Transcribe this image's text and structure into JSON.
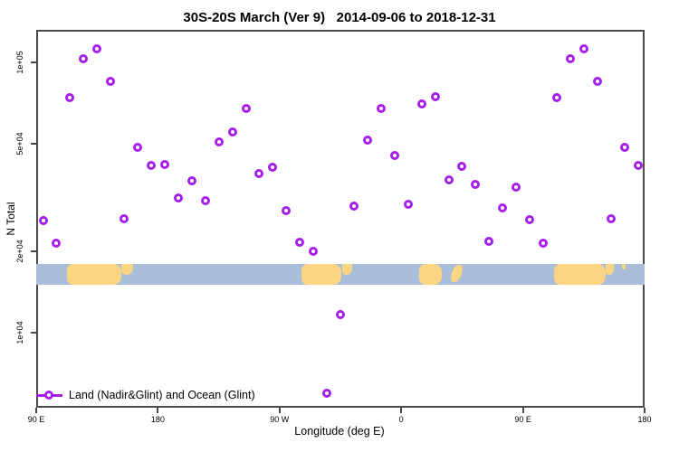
{
  "title": "30S-20S March (Ver 9)   2014-09-06 to 2018-12-31",
  "legend": {
    "label": "Land (Nadir&Glint) and Ocean (Glint)"
  },
  "colors": {
    "marker": "#A420E8",
    "ocean": "#A9BED9",
    "land": "#FBD581",
    "axis": "#4A4A4A",
    "text": "#000000"
  },
  "chart_data": {
    "type": "scatter",
    "title": "30S-20S March (Ver 9)   2014-09-06 to 2018-12-31",
    "xlabel": "Longitude (deg E)",
    "ylabel": "N Total",
    "x_range_deg_e": [
      90,
      540
    ],
    "y_scale": "log10",
    "y_range": [
      5300,
      132000
    ],
    "grid": false,
    "legend_position": "bottom-left-inside",
    "x_ticks": [
      {
        "lon": 90,
        "label": "90 E"
      },
      {
        "lon": 180,
        "label": "180"
      },
      {
        "lon": 270,
        "label": "90 W"
      },
      {
        "lon": 360,
        "label": "0"
      },
      {
        "lon": 450,
        "label": "90 E"
      },
      {
        "lon": 540,
        "label": "180"
      }
    ],
    "y_ticks": [
      {
        "n": 10000,
        "label": "1e+04"
      },
      {
        "n": 20000,
        "label": "2e+04"
      },
      {
        "n": 50000,
        "label": "5e+04"
      },
      {
        "n": 100000,
        "label": "1e+05"
      }
    ],
    "series": [
      {
        "name": "Land (Nadir&Glint) and Ocean (Glint)",
        "points": [
          {
            "lon": 95,
            "n": 26000
          },
          {
            "lon": 105,
            "n": 21400
          },
          {
            "lon": 115,
            "n": 74100
          },
          {
            "lon": 125,
            "n": 103000
          },
          {
            "lon": 135,
            "n": 112000
          },
          {
            "lon": 145,
            "n": 85100
          },
          {
            "lon": 155,
            "n": 26300
          },
          {
            "lon": 165,
            "n": 48400
          },
          {
            "lon": 175,
            "n": 41500
          },
          {
            "lon": 185,
            "n": 41800
          },
          {
            "lon": 195,
            "n": 31500
          },
          {
            "lon": 205,
            "n": 36600
          },
          {
            "lon": 215,
            "n": 30900
          },
          {
            "lon": 225,
            "n": 50700
          },
          {
            "lon": 235,
            "n": 55300
          },
          {
            "lon": 245,
            "n": 67500
          },
          {
            "lon": 255,
            "n": 38800
          },
          {
            "lon": 265,
            "n": 41000
          },
          {
            "lon": 275,
            "n": 28400
          },
          {
            "lon": 285,
            "n": 21600
          },
          {
            "lon": 295,
            "n": 20000
          },
          {
            "lon": 305,
            "n": 5960
          },
          {
            "lon": 315,
            "n": 11700
          },
          {
            "lon": 325,
            "n": 29300
          },
          {
            "lon": 335,
            "n": 51500
          },
          {
            "lon": 345,
            "n": 67500
          },
          {
            "lon": 355,
            "n": 45200
          },
          {
            "lon": 365,
            "n": 29900
          },
          {
            "lon": 375,
            "n": 70200
          },
          {
            "lon": 385,
            "n": 74800
          },
          {
            "lon": 395,
            "n": 36800
          },
          {
            "lon": 405,
            "n": 41300
          },
          {
            "lon": 415,
            "n": 35400
          },
          {
            "lon": 425,
            "n": 21800
          },
          {
            "lon": 435,
            "n": 28900
          },
          {
            "lon": 445,
            "n": 34600
          },
          {
            "lon": 455,
            "n": 26200
          },
          {
            "lon": 465,
            "n": 21400
          },
          {
            "lon": 475,
            "n": 74100
          },
          {
            "lon": 485,
            "n": 103000
          },
          {
            "lon": 495,
            "n": 112000
          },
          {
            "lon": 505,
            "n": 85100
          },
          {
            "lon": 515,
            "n": 26300
          },
          {
            "lon": 525,
            "n": 48400
          },
          {
            "lon": 535,
            "n": 41500
          }
        ]
      }
    ],
    "map_strip": {
      "description": "30S-20S latitude band land/ocean map strip",
      "ocean_n_band": [
        15000,
        18000
      ],
      "land_patches": [
        {
          "name": "australia",
          "lon": [
            113,
            153
          ],
          "shape": "full"
        },
        {
          "name": "australia-east-coast",
          "lon": [
            153,
            162
          ],
          "shape": "top"
        },
        {
          "name": "south-america",
          "lon": [
            286,
            316
          ],
          "shape": "full"
        },
        {
          "name": "south-america-east",
          "lon": [
            316,
            324
          ],
          "shape": "top"
        },
        {
          "name": "southern-africa",
          "lon": [
            373,
            390
          ],
          "shape": "full"
        },
        {
          "name": "madagascar",
          "lon": [
            397,
            404
          ],
          "shape": "sliver"
        },
        {
          "name": "australia-repeat",
          "lon": [
            473,
            511
          ],
          "shape": "full"
        },
        {
          "name": "australia-east-coast-repeat",
          "lon": [
            511,
            517
          ],
          "shape": "top"
        },
        {
          "name": "new-caledonia",
          "lon": [
            523,
            526
          ],
          "shape": "speck"
        }
      ]
    }
  }
}
